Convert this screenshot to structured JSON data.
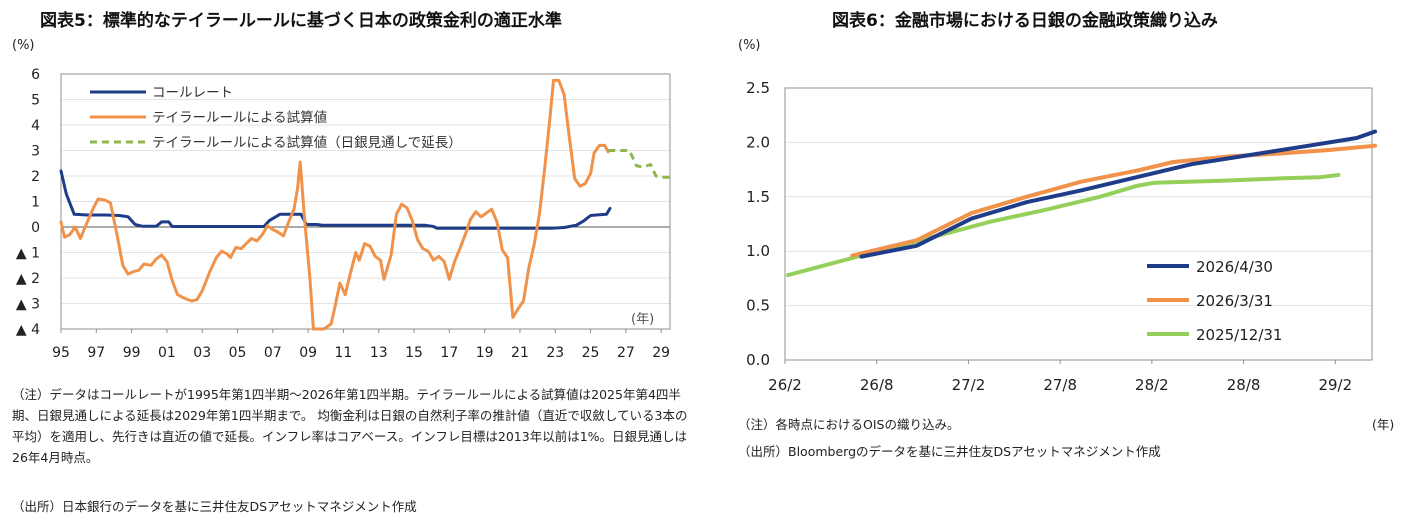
{
  "left": {
    "title": "図表5：標準的なテイラールールに基づく日本の政策金利の適正水準",
    "unit": "(%)",
    "notes": "（注）データはコールレートが1995年第1四半期～2026年第1四半期。テイラールールによる試算値は2025年第4四半期、日銀見通しによる延長は2029年第1四半期まで。 均衡金利は日銀の自然利子率の推計値（直近で収斂している3本の平均）を適用し、先行きは直近の値で延長。インフレ率はコアベース。インフレ目標は2013年以前は1%。日銀見通しは26年4月時点。",
    "source": "（出所）日本銀行のデータを基に三井住友DSアセットマネジメント作成"
  },
  "right": {
    "title": "図表6：金融市場における日銀の金融政策織り込み",
    "unit": "(%)",
    "notes": "（注）各時点におけるOISの織り込み。",
    "year_unit": "(年)",
    "source": "（出所）Bloombergのデータを基に三井住友DSアセットマネジメント作成"
  },
  "chart_data": [
    {
      "type": "line",
      "title": "図表5：標準的なテイラールールに基づく日本の政策金利の適正水準",
      "ylabel": "(%)",
      "xlabel": "(年)",
      "ylim": [
        -4,
        6
      ],
      "xlim": [
        1995,
        2029.5
      ],
      "grid": true,
      "legend": "top-left",
      "yticks": [
        {
          "v": 6,
          "label": "6"
        },
        {
          "v": 5,
          "label": "5"
        },
        {
          "v": 4,
          "label": "4"
        },
        {
          "v": 3,
          "label": "3"
        },
        {
          "v": 2,
          "label": "2"
        },
        {
          "v": 1,
          "label": "1"
        },
        {
          "v": 0,
          "label": "0"
        },
        {
          "v": -1,
          "label": "▲ 1"
        },
        {
          "v": -2,
          "label": "▲ 2"
        },
        {
          "v": -3,
          "label": "▲ 3"
        },
        {
          "v": -4,
          "label": "▲ 4"
        }
      ],
      "xticks": [
        "95",
        "97",
        "99",
        "01",
        "03",
        "05",
        "07",
        "09",
        "11",
        "13",
        "15",
        "17",
        "19",
        "21",
        "23",
        "25",
        "27",
        "29"
      ],
      "series": [
        {
          "name": "コールレート",
          "color": "#1f3c88",
          "style": "solid",
          "points": [
            [
              1995.0,
              2.2
            ],
            [
              1995.3,
              1.3
            ],
            [
              1995.75,
              0.5
            ],
            [
              1996.5,
              0.47
            ],
            [
              1997.5,
              0.47
            ],
            [
              1998.3,
              0.45
            ],
            [
              1998.8,
              0.4
            ],
            [
              1999.2,
              0.1
            ],
            [
              1999.6,
              0.03
            ],
            [
              2000.4,
              0.03
            ],
            [
              2000.7,
              0.2
            ],
            [
              2001.1,
              0.2
            ],
            [
              2001.3,
              0.02
            ],
            [
              2006.5,
              0.02
            ],
            [
              2006.8,
              0.25
            ],
            [
              2007.4,
              0.5
            ],
            [
              2008.6,
              0.5
            ],
            [
              2008.9,
              0.1
            ],
            [
              2009.5,
              0.1
            ],
            [
              2009.8,
              0.07
            ],
            [
              2015.6,
              0.07
            ],
            [
              2016.1,
              0.02
            ],
            [
              2016.3,
              -0.05
            ],
            [
              2022.8,
              -0.05
            ],
            [
              2023.5,
              -0.02
            ],
            [
              2024.2,
              0.07
            ],
            [
              2024.6,
              0.23
            ],
            [
              2025.0,
              0.45
            ],
            [
              2025.5,
              0.48
            ],
            [
              2025.9,
              0.5
            ],
            [
              2026.1,
              0.73
            ]
          ]
        },
        {
          "name": "テイラールールによる試算値",
          "color": "#f0924a",
          "style": "solid",
          "points": [
            [
              1995.0,
              0.2
            ],
            [
              1995.2,
              -0.4
            ],
            [
              1995.5,
              -0.3
            ],
            [
              1995.8,
              0.0
            ],
            [
              1996.1,
              -0.45
            ],
            [
              1996.4,
              0.05
            ],
            [
              1996.8,
              0.7
            ],
            [
              1997.1,
              1.1
            ],
            [
              1997.5,
              1.05
            ],
            [
              1997.8,
              0.95
            ],
            [
              1998.2,
              -0.4
            ],
            [
              1998.5,
              -1.5
            ],
            [
              1998.8,
              -1.85
            ],
            [
              1999.1,
              -1.75
            ],
            [
              1999.4,
              -1.7
            ],
            [
              1999.7,
              -1.45
            ],
            [
              2000.1,
              -1.5
            ],
            [
              2000.4,
              -1.25
            ],
            [
              2000.7,
              -1.1
            ],
            [
              2001.0,
              -1.35
            ],
            [
              2001.3,
              -2.1
            ],
            [
              2001.6,
              -2.65
            ],
            [
              2002.0,
              -2.8
            ],
            [
              2002.4,
              -2.9
            ],
            [
              2002.7,
              -2.85
            ],
            [
              2003.0,
              -2.5
            ],
            [
              2003.4,
              -1.8
            ],
            [
              2003.8,
              -1.2
            ],
            [
              2004.1,
              -0.95
            ],
            [
              2004.4,
              -1.05
            ],
            [
              2004.6,
              -1.2
            ],
            [
              2004.9,
              -0.8
            ],
            [
              2005.2,
              -0.85
            ],
            [
              2005.5,
              -0.65
            ],
            [
              2005.8,
              -0.45
            ],
            [
              2006.1,
              -0.55
            ],
            [
              2006.4,
              -0.3
            ],
            [
              2006.7,
              0.05
            ],
            [
              2007.0,
              -0.1
            ],
            [
              2007.3,
              -0.2
            ],
            [
              2007.6,
              -0.35
            ],
            [
              2007.9,
              0.2
            ],
            [
              2008.2,
              0.7
            ],
            [
              2008.4,
              1.5
            ],
            [
              2008.55,
              2.55
            ],
            [
              2008.8,
              0.3
            ],
            [
              2009.1,
              -2.0
            ],
            [
              2009.3,
              -4.0
            ],
            [
              2009.9,
              -4.0
            ],
            [
              2010.3,
              -3.8
            ],
            [
              2010.5,
              -3.2
            ],
            [
              2010.8,
              -2.2
            ],
            [
              2011.1,
              -2.65
            ],
            [
              2011.4,
              -1.8
            ],
            [
              2011.7,
              -1.0
            ],
            [
              2011.9,
              -1.3
            ],
            [
              2012.2,
              -0.65
            ],
            [
              2012.5,
              -0.75
            ],
            [
              2012.8,
              -1.15
            ],
            [
              2013.1,
              -1.3
            ],
            [
              2013.3,
              -2.05
            ],
            [
              2013.7,
              -1.1
            ],
            [
              2014.0,
              0.5
            ],
            [
              2014.3,
              0.9
            ],
            [
              2014.6,
              0.75
            ],
            [
              2014.9,
              0.25
            ],
            [
              2015.2,
              -0.5
            ],
            [
              2015.5,
              -0.85
            ],
            [
              2015.8,
              -0.95
            ],
            [
              2016.1,
              -1.3
            ],
            [
              2016.4,
              -1.15
            ],
            [
              2016.7,
              -1.35
            ],
            [
              2017.0,
              -2.05
            ],
            [
              2017.3,
              -1.35
            ],
            [
              2017.6,
              -0.85
            ],
            [
              2017.9,
              -0.3
            ],
            [
              2018.2,
              0.3
            ],
            [
              2018.5,
              0.6
            ],
            [
              2018.8,
              0.4
            ],
            [
              2019.1,
              0.55
            ],
            [
              2019.4,
              0.7
            ],
            [
              2019.7,
              0.2
            ],
            [
              2020.0,
              -0.9
            ],
            [
              2020.3,
              -1.2
            ],
            [
              2020.6,
              -3.55
            ],
            [
              2020.9,
              -3.2
            ],
            [
              2021.2,
              -2.9
            ],
            [
              2021.5,
              -1.6
            ],
            [
              2021.8,
              -0.7
            ],
            [
              2022.1,
              0.5
            ],
            [
              2022.4,
              2.3
            ],
            [
              2022.7,
              4.3
            ],
            [
              2022.9,
              5.75
            ],
            [
              2023.2,
              5.75
            ],
            [
              2023.5,
              5.2
            ],
            [
              2023.8,
              3.5
            ],
            [
              2024.1,
              1.9
            ],
            [
              2024.4,
              1.6
            ],
            [
              2024.7,
              1.7
            ],
            [
              2025.0,
              2.1
            ],
            [
              2025.2,
              2.9
            ],
            [
              2025.5,
              3.2
            ],
            [
              2025.8,
              3.2
            ],
            [
              2026.0,
              2.95
            ]
          ]
        },
        {
          "name": "テイラールールによる試算値（日銀見通しで延長）",
          "color": "#8fb550",
          "style": "dashed",
          "points": [
            [
              2026.0,
              3.0
            ],
            [
              2026.5,
              3.0
            ],
            [
              2027.0,
              3.0
            ],
            [
              2027.2,
              3.0
            ],
            [
              2027.6,
              2.4
            ],
            [
              2028.0,
              2.35
            ],
            [
              2028.4,
              2.45
            ],
            [
              2028.7,
              2.0
            ],
            [
              2029.0,
              1.95
            ],
            [
              2029.5,
              1.95
            ]
          ]
        }
      ]
    },
    {
      "type": "line",
      "title": "図表6：金融市場における日銀の金融政策織り込み",
      "ylabel": "(%)",
      "xlabel": "(年)",
      "ylim": [
        0,
        2.5
      ],
      "grid": true,
      "legend": "bottom-right",
      "yticks": [
        "0.0",
        "0.5",
        "1.0",
        "1.5",
        "2.0",
        "2.5"
      ],
      "xticks": [
        "26/2",
        "26/8",
        "27/2",
        "27/8",
        "28/2",
        "28/8",
        "29/2"
      ],
      "series": [
        {
          "name": "2026/4/30",
          "color": "#1f3c88",
          "points": [
            [
              2026.5,
              0.95
            ],
            [
              2026.8,
              1.05
            ],
            [
              2027.1,
              1.3
            ],
            [
              2027.4,
              1.45
            ],
            [
              2027.7,
              1.56
            ],
            [
              2028.0,
              1.68
            ],
            [
              2028.3,
              1.8
            ],
            [
              2028.6,
              1.88
            ],
            [
              2028.9,
              1.96
            ],
            [
              2029.2,
              2.04
            ],
            [
              2029.3,
              2.1
            ]
          ]
        },
        {
          "name": "2026/3/31",
          "color": "#f0924a",
          "points": [
            [
              2026.45,
              0.96
            ],
            [
              2026.8,
              1.1
            ],
            [
              2027.1,
              1.35
            ],
            [
              2027.4,
              1.5
            ],
            [
              2027.7,
              1.64
            ],
            [
              2028.0,
              1.74
            ],
            [
              2028.2,
              1.82
            ],
            [
              2028.5,
              1.87
            ],
            [
              2028.8,
              1.9
            ],
            [
              2029.05,
              1.93
            ],
            [
              2029.3,
              1.97
            ]
          ]
        },
        {
          "name": "2025/12/31",
          "color": "#95d05a",
          "points": [
            [
              2026.1,
              0.78
            ],
            [
              2026.5,
              0.96
            ],
            [
              2026.8,
              1.09
            ],
            [
              2027.2,
              1.27
            ],
            [
              2027.5,
              1.38
            ],
            [
              2027.8,
              1.5
            ],
            [
              2028.0,
              1.6
            ],
            [
              2028.1,
              1.63
            ],
            [
              2028.5,
              1.65
            ],
            [
              2028.8,
              1.67
            ],
            [
              2029.0,
              1.68
            ],
            [
              2029.1,
              1.7
            ]
          ]
        }
      ]
    }
  ]
}
